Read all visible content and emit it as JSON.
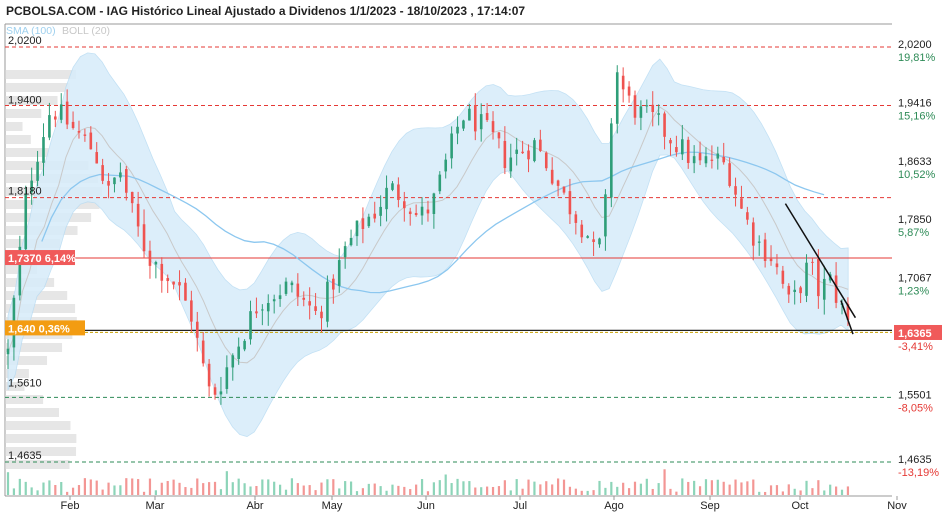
{
  "title": "PCBOLSA.COM - IAG Histórico Lineal Ajustado a Dividenos 1/1/2023 - 18/10/2023 , 17:14:07",
  "indicators": [
    {
      "label": "SMA (100)",
      "color": "#9fd0ee"
    },
    {
      "label": "BOLL (20)",
      "color": "#c8c8c8"
    }
  ],
  "colors": {
    "up": "#2e9e78",
    "down": "#ef5350",
    "band_fill": "#d7ecfa",
    "sma": "#8cc7ef",
    "resistance": "#e53935",
    "support_green": "#2e8b57",
    "support_level": "#c8a000",
    "current_tag": "#f05a5a",
    "mark_1737_tag": "#f05a5a",
    "mark_164_tag": "#f39c12"
  },
  "chart_data": {
    "type": "candlestick",
    "title": "IAG Histórico Lineal Ajustado a Dividenos 1/1/2023 - 18/10/2023",
    "xlabel": "",
    "ylabel": "",
    "ylim": [
      1.44,
      2.04
    ],
    "months": [
      "Feb",
      "Mar",
      "Abr",
      "May",
      "Jun",
      "Jul",
      "Ago",
      "Sep",
      "Oct",
      "Nov"
    ],
    "left_levels": [
      "2,0200",
      "1,9400",
      "1,8180",
      "1,5610",
      "1,4635"
    ],
    "right_levels": [
      {
        "price": "2,0200",
        "pct": "19,81%",
        "dir": "up"
      },
      {
        "price": "1,9416",
        "pct": "15,16%",
        "dir": "up"
      },
      {
        "price": "1,8633",
        "pct": "10,52%",
        "dir": "up"
      },
      {
        "price": "1,7850",
        "pct": "5,87%",
        "dir": "up"
      },
      {
        "price": "1,7067",
        "pct": "1,23%",
        "dir": "up"
      },
      {
        "price": "1,5501",
        "pct": "-8,05%",
        "dir": "down"
      },
      {
        "price": "1,4635",
        "pct": "-13,19%",
        "dir": "down"
      }
    ],
    "current_price": "1,6365",
    "current_pct": "-3,41%",
    "mark_1737": {
      "price": "1,7370",
      "pct": "6,14%"
    },
    "mark_164": {
      "price": "1,640",
      "pct": "0,36%"
    },
    "anchor_points": [
      [
        0,
        1.61
      ],
      [
        8,
        1.83
      ],
      [
        14,
        1.9
      ],
      [
        18,
        1.94
      ],
      [
        24,
        1.92
      ],
      [
        30,
        1.9
      ],
      [
        36,
        1.88
      ],
      [
        42,
        1.82
      ],
      [
        46,
        1.86
      ],
      [
        52,
        1.79
      ],
      [
        58,
        1.74
      ],
      [
        64,
        1.72
      ],
      [
        70,
        1.7
      ],
      [
        76,
        1.66
      ],
      [
        80,
        1.6
      ],
      [
        84,
        1.55
      ],
      [
        88,
        1.57
      ],
      [
        92,
        1.6
      ],
      [
        98,
        1.64
      ],
      [
        104,
        1.68
      ],
      [
        110,
        1.69
      ],
      [
        116,
        1.7
      ],
      [
        122,
        1.68
      ],
      [
        128,
        1.66
      ],
      [
        134,
        1.7
      ],
      [
        140,
        1.75
      ],
      [
        146,
        1.78
      ],
      [
        152,
        1.8
      ],
      [
        158,
        1.83
      ],
      [
        164,
        1.82
      ],
      [
        170,
        1.79
      ],
      [
        176,
        1.81
      ],
      [
        182,
        1.87
      ],
      [
        188,
        1.93
      ],
      [
        194,
        1.92
      ],
      [
        200,
        1.9
      ],
      [
        206,
        1.87
      ],
      [
        212,
        1.88
      ],
      [
        218,
        1.89
      ],
      [
        224,
        1.86
      ],
      [
        230,
        1.82
      ],
      [
        236,
        1.79
      ],
      [
        240,
        1.77
      ],
      [
        244,
        1.73
      ],
      [
        248,
        1.82
      ],
      [
        250,
        1.93
      ],
      [
        252,
        1.99
      ],
      [
        256,
        1.95
      ],
      [
        262,
        1.93
      ],
      [
        268,
        1.92
      ],
      [
        274,
        1.9
      ],
      [
        280,
        1.88
      ],
      [
        286,
        1.86
      ],
      [
        292,
        1.87
      ],
      [
        298,
        1.86
      ],
      [
        304,
        1.8
      ],
      [
        310,
        1.76
      ],
      [
        316,
        1.74
      ],
      [
        320,
        1.71
      ],
      [
        324,
        1.67
      ],
      [
        328,
        1.7
      ],
      [
        332,
        1.73
      ],
      [
        336,
        1.69
      ],
      [
        340,
        1.71
      ],
      [
        344,
        1.68
      ],
      [
        348,
        1.65
      ],
      [
        350,
        1.6365
      ]
    ]
  }
}
